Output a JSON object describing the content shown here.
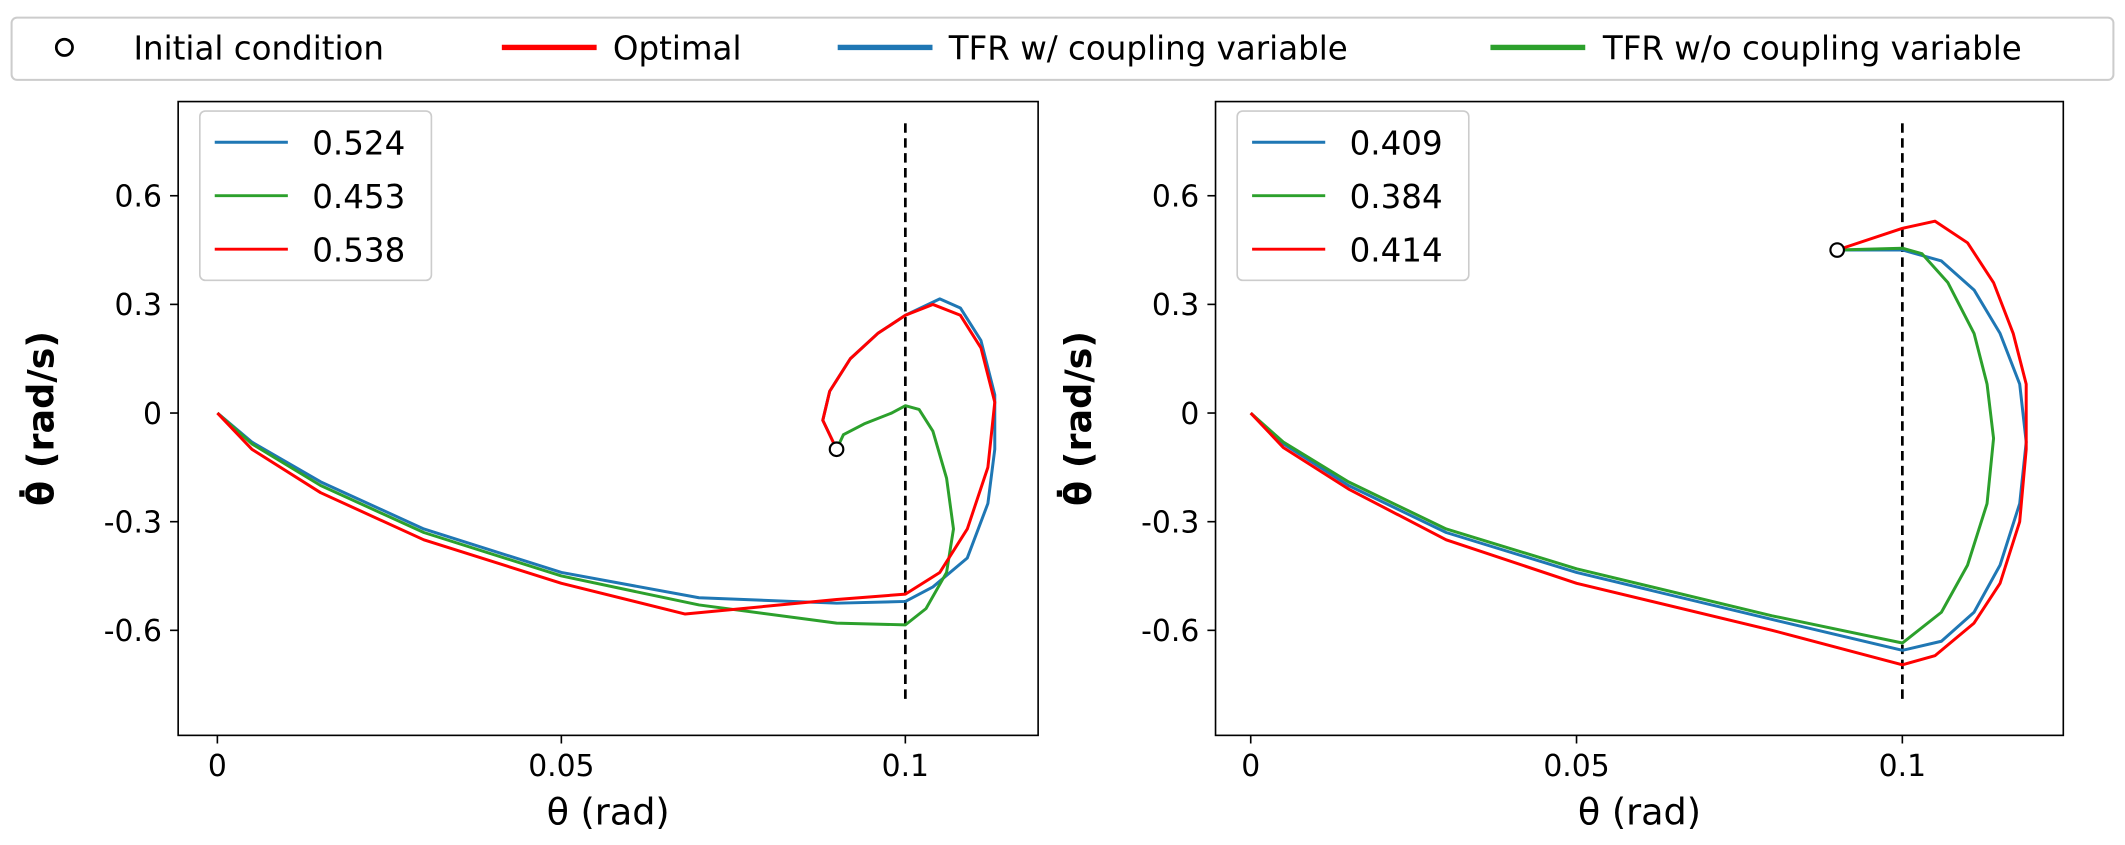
{
  "legend": {
    "items": [
      {
        "label": "Initial condition",
        "marker": "circle",
        "color": "#000000"
      },
      {
        "label": "Optimal",
        "color": "#ff0000"
      },
      {
        "label": "TFR w/ coupling variable",
        "color": "#1f77b4"
      },
      {
        "label": "TFR w/o coupling variable",
        "color": "#2ca02c"
      }
    ]
  },
  "chart_data": [
    {
      "type": "line",
      "xlabel": "θ (rad)",
      "ylabel": "θ̇ (rad/s)",
      "xlim": [
        -0.0057,
        0.1193
      ],
      "ylim": [
        -0.89,
        0.86
      ],
      "xticks": [
        {
          "v": 0,
          "label": "0"
        },
        {
          "v": 0.05,
          "label": "0.05"
        },
        {
          "v": 0.1,
          "label": "0.1"
        }
      ],
      "yticks": [
        {
          "v": 0.6,
          "label": "0.6"
        },
        {
          "v": 0.3,
          "label": "0.3"
        },
        {
          "v": 0,
          "label": "0"
        },
        {
          "v": -0.3,
          "label": "-0.3"
        },
        {
          "v": -0.6,
          "label": "-0.6"
        }
      ],
      "vline": {
        "x": 0.1,
        "ymin": -0.8,
        "ymax": 0.8
      },
      "initial_condition": [
        0.09,
        -0.1
      ],
      "legend_placement": "upper-left",
      "series": [
        {
          "name": "0.524",
          "color": "#1f77b4",
          "points": [
            [
              0.09,
              -0.1
            ],
            [
              0.088,
              -0.02
            ],
            [
              0.089,
              0.06
            ],
            [
              0.092,
              0.15
            ],
            [
              0.096,
              0.22
            ],
            [
              0.1,
              0.27
            ],
            [
              0.105,
              0.315
            ],
            [
              0.108,
              0.29
            ],
            [
              0.111,
              0.2
            ],
            [
              0.113,
              0.05
            ],
            [
              0.113,
              -0.1
            ],
            [
              0.112,
              -0.25
            ],
            [
              0.109,
              -0.4
            ],
            [
              0.104,
              -0.48
            ],
            [
              0.1,
              -0.52
            ],
            [
              0.09,
              -0.525
            ],
            [
              0.07,
              -0.51
            ],
            [
              0.05,
              -0.44
            ],
            [
              0.03,
              -0.32
            ],
            [
              0.015,
              -0.19
            ],
            [
              0.005,
              -0.08
            ],
            [
              0,
              0
            ]
          ]
        },
        {
          "name": "0.453",
          "color": "#2ca02c",
          "points": [
            [
              0.09,
              -0.1
            ],
            [
              0.091,
              -0.06
            ],
            [
              0.094,
              -0.03
            ],
            [
              0.098,
              0.0
            ],
            [
              0.1,
              0.02
            ],
            [
              0.102,
              0.01
            ],
            [
              0.104,
              -0.05
            ],
            [
              0.106,
              -0.18
            ],
            [
              0.107,
              -0.32
            ],
            [
              0.106,
              -0.44
            ],
            [
              0.103,
              -0.54
            ],
            [
              0.1,
              -0.585
            ],
            [
              0.09,
              -0.58
            ],
            [
              0.07,
              -0.53
            ],
            [
              0.05,
              -0.45
            ],
            [
              0.03,
              -0.33
            ],
            [
              0.015,
              -0.2
            ],
            [
              0.005,
              -0.085
            ],
            [
              0,
              0
            ]
          ]
        },
        {
          "name": "0.538",
          "color": "#ff0000",
          "points": [
            [
              0.09,
              -0.1
            ],
            [
              0.088,
              -0.02
            ],
            [
              0.089,
              0.06
            ],
            [
              0.092,
              0.15
            ],
            [
              0.096,
              0.22
            ],
            [
              0.1,
              0.27
            ],
            [
              0.104,
              0.3
            ],
            [
              0.108,
              0.27
            ],
            [
              0.111,
              0.18
            ],
            [
              0.113,
              0.03
            ],
            [
              0.112,
              -0.15
            ],
            [
              0.109,
              -0.32
            ],
            [
              0.105,
              -0.44
            ],
            [
              0.1,
              -0.5
            ],
            [
              0.09,
              -0.515
            ],
            [
              0.068,
              -0.555
            ],
            [
              0.05,
              -0.47
            ],
            [
              0.03,
              -0.35
            ],
            [
              0.015,
              -0.22
            ],
            [
              0.005,
              -0.1
            ],
            [
              0,
              0
            ]
          ]
        }
      ]
    },
    {
      "type": "line",
      "xlabel": "θ (rad)",
      "ylabel": "θ̇ (rad/s)",
      "xlim": [
        -0.0054,
        0.1247
      ],
      "ylim": [
        -0.89,
        0.86
      ],
      "xticks": [
        {
          "v": 0,
          "label": "0"
        },
        {
          "v": 0.05,
          "label": "0.05"
        },
        {
          "v": 0.1,
          "label": "0.1"
        }
      ],
      "yticks": [
        {
          "v": 0.6,
          "label": "0.6"
        },
        {
          "v": 0.3,
          "label": "0.3"
        },
        {
          "v": 0,
          "label": "0"
        },
        {
          "v": -0.3,
          "label": "-0.3"
        },
        {
          "v": -0.6,
          "label": "-0.6"
        }
      ],
      "vline": {
        "x": 0.1,
        "ymin": -0.8,
        "ymax": 0.8
      },
      "initial_condition": [
        0.09,
        0.45
      ],
      "legend_placement": "upper-left",
      "series": [
        {
          "name": "0.409",
          "color": "#1f77b4",
          "points": [
            [
              0.09,
              0.45
            ],
            [
              0.1,
              0.45
            ],
            [
              0.106,
              0.42
            ],
            [
              0.111,
              0.34
            ],
            [
              0.115,
              0.22
            ],
            [
              0.118,
              0.08
            ],
            [
              0.119,
              -0.08
            ],
            [
              0.118,
              -0.25
            ],
            [
              0.115,
              -0.42
            ],
            [
              0.111,
              -0.55
            ],
            [
              0.106,
              -0.63
            ],
            [
              0.1,
              -0.655
            ],
            [
              0.08,
              -0.57
            ],
            [
              0.05,
              -0.44
            ],
            [
              0.03,
              -0.33
            ],
            [
              0.015,
              -0.2
            ],
            [
              0.005,
              -0.085
            ],
            [
              0,
              0
            ]
          ]
        },
        {
          "name": "0.384",
          "color": "#2ca02c",
          "points": [
            [
              0.09,
              0.45
            ],
            [
              0.1,
              0.455
            ],
            [
              0.103,
              0.44
            ],
            [
              0.107,
              0.36
            ],
            [
              0.111,
              0.22
            ],
            [
              0.113,
              0.08
            ],
            [
              0.114,
              -0.07
            ],
            [
              0.113,
              -0.25
            ],
            [
              0.11,
              -0.42
            ],
            [
              0.106,
              -0.55
            ],
            [
              0.1,
              -0.635
            ],
            [
              0.08,
              -0.56
            ],
            [
              0.05,
              -0.43
            ],
            [
              0.03,
              -0.32
            ],
            [
              0.015,
              -0.19
            ],
            [
              0.005,
              -0.08
            ],
            [
              0,
              0
            ]
          ]
        },
        {
          "name": "0.414",
          "color": "#ff0000",
          "points": [
            [
              0.09,
              0.45
            ],
            [
              0.1,
              0.51
            ],
            [
              0.105,
              0.53
            ],
            [
              0.11,
              0.47
            ],
            [
              0.114,
              0.36
            ],
            [
              0.117,
              0.22
            ],
            [
              0.119,
              0.08
            ],
            [
              0.119,
              -0.1
            ],
            [
              0.118,
              -0.3
            ],
            [
              0.115,
              -0.47
            ],
            [
              0.111,
              -0.58
            ],
            [
              0.105,
              -0.67
            ],
            [
              0.1,
              -0.695
            ],
            [
              0.08,
              -0.6
            ],
            [
              0.05,
              -0.47
            ],
            [
              0.03,
              -0.35
            ],
            [
              0.015,
              -0.21
            ],
            [
              0.005,
              -0.095
            ],
            [
              0,
              0
            ]
          ]
        }
      ]
    }
  ]
}
